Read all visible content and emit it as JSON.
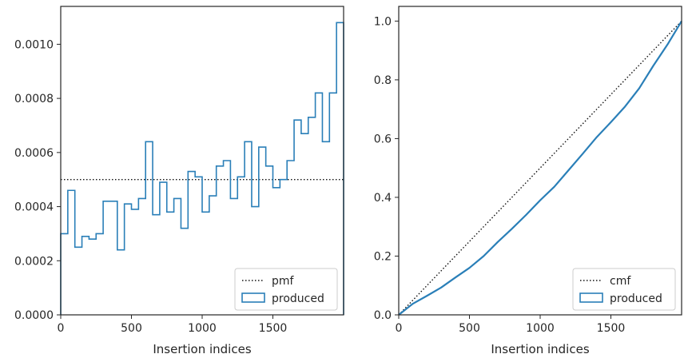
{
  "colors": {
    "produced": "#2a7fb8",
    "reference": "#111111",
    "axes": "#262626",
    "legend_border": "#cccccc"
  },
  "chart_data": [
    {
      "type": "histogram-step",
      "xlabel": "Insertion indices",
      "ylabel": "",
      "xlim": [
        0,
        2000
      ],
      "ylim": [
        0,
        0.00114
      ],
      "xticks": [
        0,
        500,
        1000,
        1500
      ],
      "xtick_labels": [
        "0",
        "500",
        "1000",
        "1500"
      ],
      "yticks": [
        0,
        0.0002,
        0.0004,
        0.0006,
        0.0008,
        0.001
      ],
      "ytick_labels": [
        "0.0000",
        "0.0002",
        "0.0004",
        "0.0006",
        "0.0008",
        "0.0010"
      ],
      "grid": false,
      "legend_position": "lower-right",
      "bin_width": 50,
      "bin_edges_start": 0,
      "series": [
        {
          "name": "pmf",
          "style": "dotted",
          "values": [
            0.0005
          ]
        },
        {
          "name": "produced",
          "style": "step",
          "values": [
            0.0003,
            0.00046,
            0.00025,
            0.00029,
            0.00028,
            0.0003,
            0.00042,
            0.00042,
            0.00024,
            0.00041,
            0.00039,
            0.00043,
            0.00064,
            0.00037,
            0.00049,
            0.00038,
            0.00043,
            0.00032,
            0.00053,
            0.00051,
            0.00038,
            0.00044,
            0.00055,
            0.00057,
            0.00043,
            0.00051,
            0.00064,
            0.0004,
            0.00062,
            0.00055,
            0.00047,
            0.0005,
            0.00057,
            0.00072,
            0.00067,
            0.00073,
            0.00082,
            0.00064,
            0.00082,
            0.00108
          ]
        }
      ]
    },
    {
      "type": "line",
      "xlabel": "Insertion indices",
      "ylabel": "",
      "xlim": [
        0,
        2000
      ],
      "ylim": [
        0,
        1.05
      ],
      "xticks": [
        0,
        500,
        1000,
        1500
      ],
      "xtick_labels": [
        "0",
        "500",
        "1000",
        "1500"
      ],
      "yticks": [
        0,
        0.2,
        0.4,
        0.6,
        0.8,
        1.0
      ],
      "ytick_labels": [
        "0.0",
        "0.2",
        "0.4",
        "0.6",
        "0.8",
        "1.0"
      ],
      "grid": false,
      "legend_position": "lower-right",
      "series": [
        {
          "name": "cmf",
          "style": "dotted",
          "x": [
            0,
            2000
          ],
          "y": [
            0,
            1.0
          ]
        },
        {
          "name": "produced",
          "style": "step",
          "x": [
            0,
            100,
            200,
            300,
            400,
            500,
            600,
            700,
            800,
            900,
            1000,
            1100,
            1200,
            1300,
            1400,
            1500,
            1600,
            1700,
            1800,
            1900,
            2000
          ],
          "y": [
            0,
            0.038,
            0.065,
            0.093,
            0.127,
            0.16,
            0.2,
            0.248,
            0.293,
            0.34,
            0.39,
            0.436,
            0.492,
            0.548,
            0.605,
            0.656,
            0.709,
            0.771,
            0.848,
            0.92,
            1.0
          ]
        }
      ]
    }
  ]
}
